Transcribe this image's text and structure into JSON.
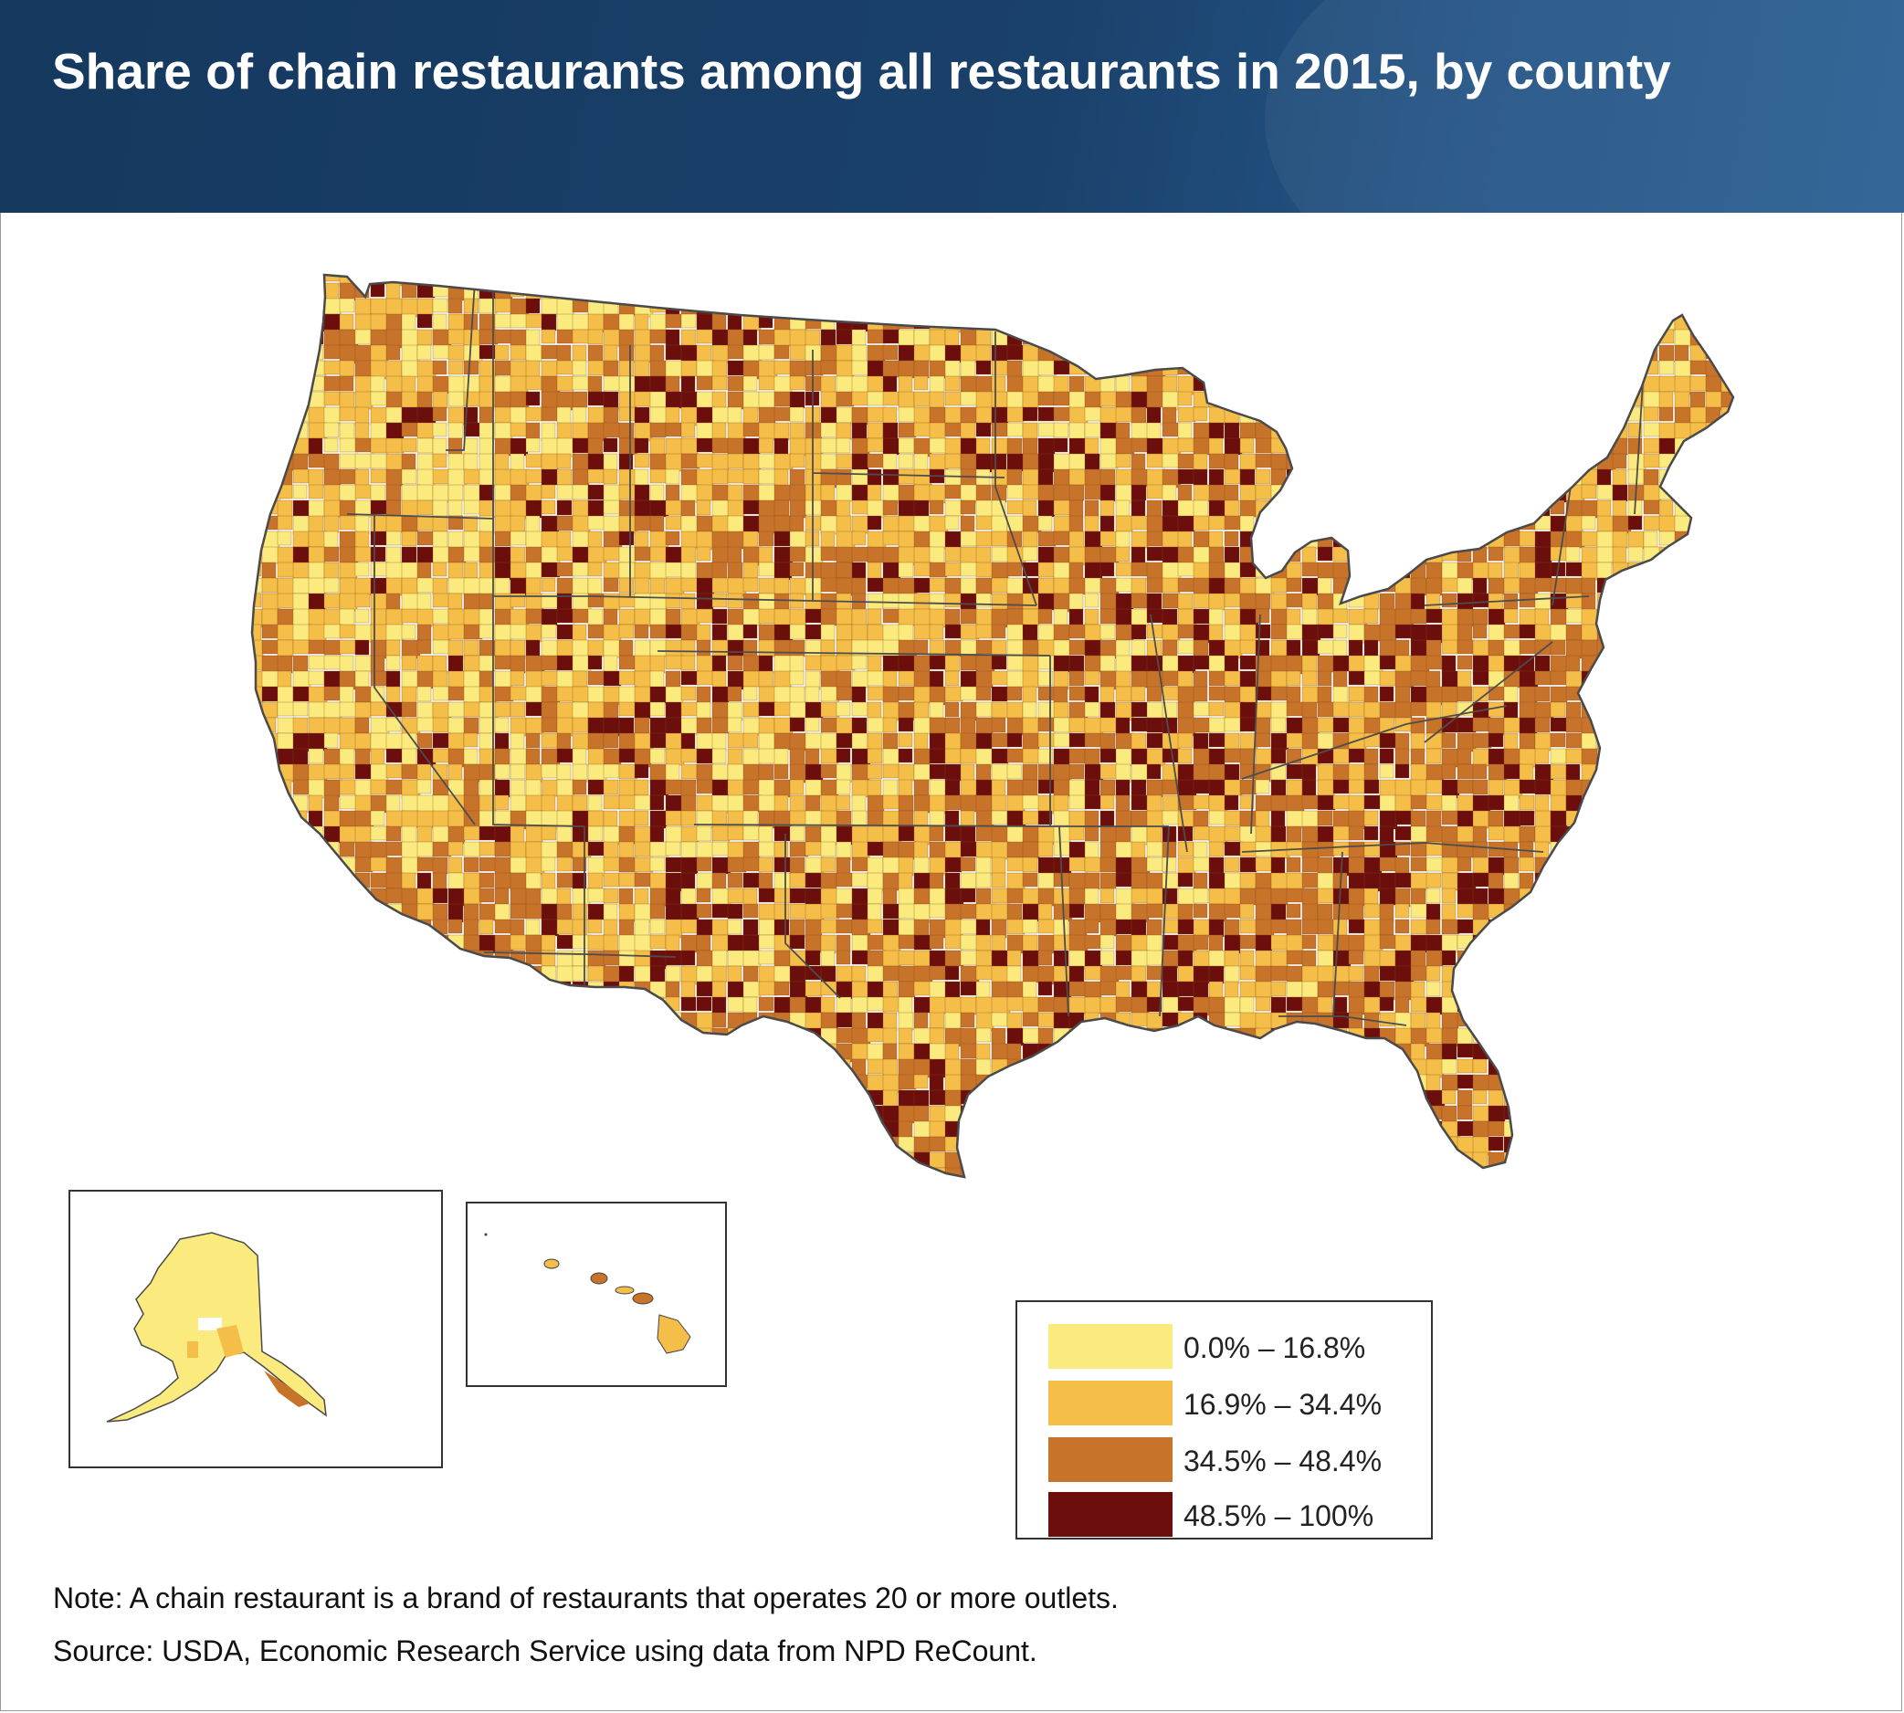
{
  "title": "Share of chain restaurants among all restaurants in 2015, by county",
  "legend": {
    "items": [
      {
        "label": "0.0% – 16.8%",
        "color": "#fbea7d"
      },
      {
        "label": "16.9% – 34.4%",
        "color": "#f4be48"
      },
      {
        "label": "34.5% – 48.4%",
        "color": "#c8732a"
      },
      {
        "label": "48.5% – 100%",
        "color": "#6c0f0c"
      }
    ]
  },
  "insets": [
    "Alaska",
    "Hawaii"
  ],
  "note": "Note: A chain restaurant is a brand of restaurants that operates 20 or more outlets.",
  "source": "Source: USDA, Economic Research Service using data from NPD ReCount.",
  "colors": {
    "header": "#1a416b",
    "border": "#545454",
    "nodata": "#ffffff"
  }
}
